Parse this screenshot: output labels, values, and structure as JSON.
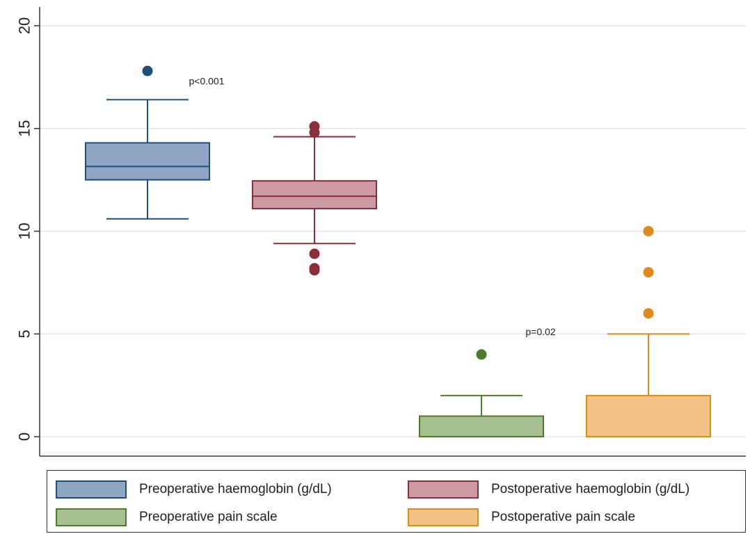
{
  "chart_data": {
    "type": "box",
    "ylim": [
      0,
      20
    ],
    "y_ticks": [
      0,
      5,
      10,
      15,
      20
    ],
    "grid": true,
    "legend_position": "bottom",
    "series": [
      {
        "name": "Preoperative haemoglobin (g/dL)",
        "color": "#1f4e79",
        "fill": "#8ea6c2",
        "whisker_low": 10.6,
        "q1": 12.5,
        "median": 13.15,
        "q3": 14.3,
        "whisker_high": 16.4,
        "outliers": [
          17.8
        ]
      },
      {
        "name": "Postoperative haemoglobin (g/dL)",
        "color": "#8b2c38",
        "fill": "#cc9aa3",
        "whisker_low": 9.4,
        "q1": 11.1,
        "median": 11.7,
        "q3": 12.45,
        "whisker_high": 14.6,
        "outliers": [
          15.1,
          14.8,
          8.9,
          8.2,
          8.1
        ]
      },
      {
        "name": "Preoperative pain scale",
        "color": "#4e7a2c",
        "fill": "#a7bf91",
        "whisker_low": 0,
        "q1": 0,
        "median": 0,
        "q3": 1,
        "whisker_high": 2,
        "outliers": [
          4
        ]
      },
      {
        "name": "Postoperative pain scale",
        "color": "#e08a1a",
        "fill": "#f2c384",
        "whisker_low": 0,
        "q1": 0,
        "median": 0,
        "q3": 2,
        "whisker_high": 5,
        "outliers": [
          6,
          8,
          10
        ]
      }
    ],
    "annotations": [
      {
        "text": "p<0.001",
        "x": 1.5,
        "y": 17.3
      },
      {
        "text": "p=0.02",
        "x": 3.5,
        "y": 5.1
      }
    ]
  },
  "legend": [
    {
      "label": "Preoperative haemoglobin (g/dL)",
      "border": "#1f4e79",
      "fill": "#8ea6c2"
    },
    {
      "label": "Postoperative haemoglobin (g/dL)",
      "border": "#8b2c38",
      "fill": "#cc9aa3"
    },
    {
      "label": "Preoperative pain scale",
      "border": "#4e7a2c",
      "fill": "#a7bf91"
    },
    {
      "label": "Postoperative pain scale",
      "border": "#e08a1a",
      "fill": "#f2c384"
    }
  ]
}
